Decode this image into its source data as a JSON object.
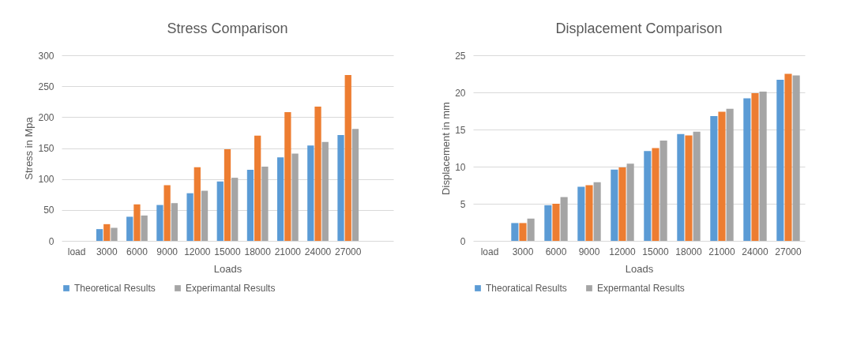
{
  "chart_data": [
    {
      "type": "bar",
      "title": "Stress Comparison",
      "xlabel": "Loads",
      "ylabel": "Stress in Mpa",
      "categories": [
        "load",
        "3000",
        "6000",
        "9000",
        "12000",
        "15000",
        "18000",
        "21000",
        "24000",
        "27000",
        null
      ],
      "ylim": [
        0,
        300
      ],
      "yticks": [
        0,
        50,
        100,
        150,
        200,
        250,
        300
      ],
      "grid": "y",
      "legend": "bottom",
      "series": [
        {
          "name": "Theoretical Results",
          "color": "#5b9bd5",
          "values": [
            null,
            19,
            39,
            58,
            77,
            96,
            115,
            135,
            154,
            171,
            null
          ]
        },
        {
          "color": "#ed7d31",
          "values": [
            null,
            27,
            59,
            90,
            119,
            148,
            170,
            208,
            217,
            268,
            null
          ]
        },
        {
          "name": "Experimantal Results",
          "color": "#a5a5a5",
          "values": [
            null,
            21,
            41,
            61,
            81,
            102,
            120,
            141,
            160,
            181,
            null
          ]
        }
      ]
    },
    {
      "type": "bar",
      "title": "Displacement Comparison",
      "xlabel": "Loads",
      "ylabel": "Displacement in mm",
      "categories": [
        "load",
        "3000",
        "6000",
        "9000",
        "12000",
        "15000",
        "18000",
        "21000",
        "24000",
        "27000"
      ],
      "ylim": [
        0,
        25
      ],
      "yticks": [
        0,
        5,
        10,
        15,
        20,
        25
      ],
      "grid": "y",
      "legend": "bottom",
      "series": [
        {
          "name": "Theoratical Results",
          "color": "#5b9bd5",
          "values": [
            null,
            2.4,
            4.8,
            7.3,
            9.6,
            12.1,
            14.4,
            16.8,
            19.2,
            21.7
          ]
        },
        {
          "color": "#ed7d31",
          "values": [
            null,
            2.4,
            5.0,
            7.5,
            9.9,
            12.5,
            14.2,
            17.4,
            19.9,
            22.5
          ]
        },
        {
          "name": "Expermantal Results",
          "color": "#a5a5a5",
          "values": [
            null,
            3.0,
            5.9,
            7.9,
            10.4,
            13.5,
            14.7,
            17.8,
            20.1,
            22.3
          ]
        }
      ]
    }
  ]
}
